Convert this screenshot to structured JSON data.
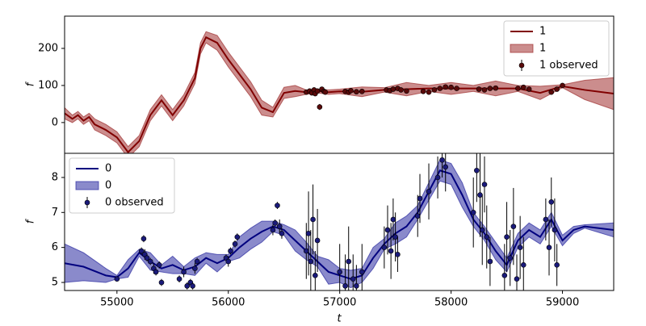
{
  "chart_data": [
    {
      "type": "gp",
      "ylabel": "f",
      "legend": "upper right",
      "xlim": [
        54530,
        59460
      ],
      "ylim": [
        -83,
        287
      ],
      "yticks": [
        0,
        100,
        200
      ],
      "x": [
        54530,
        54600,
        54650,
        54700,
        54750,
        54800,
        54900,
        55000,
        55100,
        55200,
        55300,
        55400,
        55500,
        55600,
        55700,
        55750,
        55800,
        55900,
        56000,
        56100,
        56200,
        56300,
        56400,
        56500,
        56600,
        56700,
        56800,
        56900,
        57000,
        57200,
        57400,
        57600,
        57800,
        58000,
        58200,
        58400,
        58600,
        58800,
        59000,
        59200,
        59460
      ],
      "series": [
        {
          "name": "1",
          "kind": "line",
          "color": "#800000",
          "values": [
            25,
            10,
            20,
            5,
            15,
            -5,
            -20,
            -40,
            -80,
            -50,
            20,
            60,
            20,
            60,
            120,
            200,
            230,
            215,
            170,
            130,
            90,
            40,
            28,
            80,
            85,
            82,
            85,
            82,
            84,
            83,
            88,
            90,
            92,
            92,
            92,
            92,
            92,
            80,
            98,
            88,
            78
          ]
        },
        {
          "name": "1",
          "kind": "band",
          "color": "#a03030",
          "lower": [
            10,
            0,
            10,
            -5,
            5,
            -20,
            -35,
            -55,
            -95,
            -65,
            5,
            45,
            5,
            45,
            105,
            185,
            215,
            195,
            150,
            110,
            70,
            20,
            15,
            65,
            70,
            76,
            80,
            76,
            78,
            70,
            82,
            72,
            84,
            76,
            84,
            72,
            84,
            62,
            94,
            62,
            35
          ],
          "upper": [
            40,
            20,
            30,
            15,
            25,
            10,
            -5,
            -25,
            -65,
            -35,
            35,
            75,
            35,
            75,
            135,
            215,
            245,
            235,
            190,
            150,
            110,
            60,
            41,
            95,
            100,
            88,
            90,
            88,
            90,
            96,
            94,
            108,
            100,
            108,
            100,
            112,
            100,
            98,
            102,
            114,
            121
          ]
        },
        {
          "name": "1 observed",
          "kind": "points",
          "color": "#5a0a0a",
          "x": [
            56700,
            56730,
            56750,
            56770,
            56780,
            56800,
            56820,
            56840,
            56860,
            56870,
            57050,
            57080,
            57100,
            57150,
            57200,
            57420,
            57450,
            57480,
            57520,
            57550,
            57600,
            57750,
            57800,
            57850,
            57900,
            57950,
            58000,
            58050,
            58250,
            58300,
            58350,
            58400,
            58600,
            58650,
            58700,
            58900,
            58950,
            59000
          ],
          "values": [
            82,
            85,
            80,
            88,
            78,
            85,
            42,
            90,
            84,
            82,
            84,
            82,
            86,
            83,
            84,
            88,
            86,
            90,
            92,
            88,
            85,
            84,
            82,
            88,
            92,
            96,
            95,
            92,
            90,
            88,
            92,
            93,
            92,
            95,
            90,
            82,
            90,
            100
          ],
          "errors": [
            5,
            6,
            5,
            7,
            6,
            5,
            8,
            6,
            5,
            5,
            5,
            6,
            5,
            5,
            6,
            5,
            6,
            5,
            6,
            5,
            5,
            6,
            5,
            5,
            6,
            5,
            5,
            6,
            5,
            5,
            6,
            5,
            5,
            6,
            5,
            5,
            6,
            5
          ]
        }
      ]
    },
    {
      "type": "gp",
      "ylabel": "f",
      "xlabel": "t",
      "legend": "upper left",
      "xlim": [
        54530,
        59460
      ],
      "ylim": [
        4.77,
        8.69
      ],
      "yticks": [
        5,
        6,
        7,
        8
      ],
      "xticks": [
        55000,
        56000,
        57000,
        58000,
        59000
      ],
      "x": [
        54530,
        54700,
        54900,
        55000,
        55100,
        55200,
        55300,
        55400,
        55500,
        55600,
        55700,
        55800,
        55900,
        56000,
        56100,
        56200,
        56300,
        56400,
        56500,
        56600,
        56700,
        56800,
        56900,
        57000,
        57100,
        57200,
        57300,
        57400,
        57500,
        57600,
        57700,
        57800,
        57900,
        58000,
        58100,
        58200,
        58300,
        58400,
        58500,
        58600,
        58700,
        58800,
        58900,
        59000,
        59100,
        59200,
        59460
      ],
      "series": [
        {
          "name": "0",
          "kind": "line",
          "color": "#00007f",
          "values": [
            5.55,
            5.45,
            5.2,
            5.15,
            5.4,
            5.85,
            5.6,
            5.4,
            5.5,
            5.35,
            5.45,
            5.7,
            5.55,
            5.7,
            6.0,
            6.25,
            6.45,
            6.6,
            6.5,
            6.2,
            5.9,
            5.6,
            5.3,
            5.2,
            5.1,
            5.2,
            5.7,
            6.1,
            6.4,
            6.6,
            7.0,
            7.6,
            8.2,
            8.1,
            7.5,
            6.8,
            6.4,
            5.9,
            5.5,
            6.2,
            6.5,
            6.3,
            6.8,
            6.2,
            6.5,
            6.6,
            6.5
          ]
        },
        {
          "name": "0",
          "kind": "band",
          "color": "#2a2aa0",
          "lower": [
            5.0,
            5.05,
            5.0,
            5.1,
            5.15,
            5.75,
            5.35,
            5.3,
            5.25,
            5.25,
            5.2,
            5.55,
            5.3,
            5.6,
            5.7,
            5.95,
            6.15,
            6.45,
            6.35,
            5.9,
            5.65,
            5.45,
            4.95,
            5.0,
            4.85,
            5.0,
            5.4,
            5.95,
            6.1,
            6.3,
            6.8,
            7.35,
            7.9,
            7.8,
            7.15,
            6.6,
            6.2,
            5.65,
            5.3,
            6.0,
            6.3,
            6.1,
            6.6,
            6.05,
            6.4,
            6.55,
            6.3
          ],
          "upper": [
            6.1,
            5.85,
            5.4,
            5.2,
            5.65,
            5.95,
            5.85,
            5.5,
            5.75,
            5.45,
            5.7,
            5.85,
            5.8,
            5.8,
            6.3,
            6.55,
            6.75,
            6.75,
            6.65,
            6.5,
            6.15,
            5.75,
            5.65,
            5.4,
            5.35,
            5.4,
            6.0,
            6.25,
            6.7,
            6.9,
            7.2,
            7.85,
            8.5,
            8.4,
            7.85,
            7.0,
            6.6,
            6.15,
            5.7,
            6.4,
            6.7,
            6.5,
            7.0,
            6.35,
            6.6,
            6.65,
            6.7
          ]
        },
        {
          "name": "0 observed",
          "kind": "points",
          "color": "#1a1a7a",
          "x": [
            55000,
            55220,
            55240,
            55250,
            55270,
            55300,
            55330,
            55350,
            55380,
            55400,
            55560,
            55600,
            55630,
            55660,
            55680,
            55700,
            55720,
            55980,
            56000,
            56020,
            56060,
            56080,
            56400,
            56420,
            56440,
            56460,
            56480,
            56700,
            56720,
            56740,
            56760,
            56780,
            56800,
            57000,
            57050,
            57080,
            57120,
            57150,
            57200,
            57400,
            57430,
            57460,
            57480,
            57500,
            57520,
            57700,
            57720,
            57800,
            57880,
            57920,
            57950,
            58200,
            58230,
            58260,
            58280,
            58300,
            58320,
            58350,
            58480,
            58500,
            58530,
            58560,
            58590,
            58620,
            58650,
            58850,
            58880,
            58900,
            58930,
            58950
          ],
          "values": [
            5.1,
            5.9,
            6.25,
            5.8,
            5.7,
            5.6,
            5.4,
            5.3,
            5.5,
            5.0,
            5.1,
            5.3,
            4.9,
            5.0,
            4.9,
            5.4,
            5.6,
            5.7,
            5.6,
            5.9,
            6.1,
            6.3,
            6.5,
            6.7,
            7.2,
            6.6,
            6.4,
            5.9,
            6.4,
            5.6,
            6.8,
            5.2,
            6.2,
            5.3,
            4.9,
            5.6,
            5.1,
            4.9,
            5.3,
            6.0,
            6.5,
            5.9,
            6.8,
            6.3,
            5.8,
            6.9,
            7.4,
            7.6,
            8.0,
            8.5,
            8.3,
            7.0,
            8.2,
            7.5,
            6.5,
            7.8,
            6.3,
            5.6,
            5.2,
            6.3,
            5.7,
            6.6,
            5.1,
            6.0,
            5.5,
            6.8,
            6.0,
            7.3,
            6.5,
            5.5
          ],
          "errors": [
            0.05,
            0.1,
            0.1,
            0.15,
            0.1,
            0.1,
            0.15,
            0.1,
            0.1,
            0.1,
            0.1,
            0.15,
            0.1,
            0.1,
            0.1,
            0.15,
            0.1,
            0.1,
            0.15,
            0.1,
            0.1,
            0.1,
            0.15,
            0.1,
            0.1,
            0.2,
            0.15,
            0.8,
            1.2,
            0.9,
            1.0,
            0.7,
            0.9,
            0.8,
            0.9,
            1.0,
            0.7,
            0.6,
            0.8,
            0.6,
            0.7,
            0.8,
            0.6,
            0.7,
            0.5,
            0.6,
            0.7,
            0.8,
            0.6,
            0.5,
            0.7,
            1.0,
            0.9,
            1.2,
            1.0,
            0.8,
            0.9,
            0.7,
            0.9,
            1.0,
            0.8,
            1.1,
            0.7,
            0.9,
            0.8,
            0.6,
            0.8,
            0.7,
            0.9,
            0.6
          ]
        }
      ]
    }
  ]
}
